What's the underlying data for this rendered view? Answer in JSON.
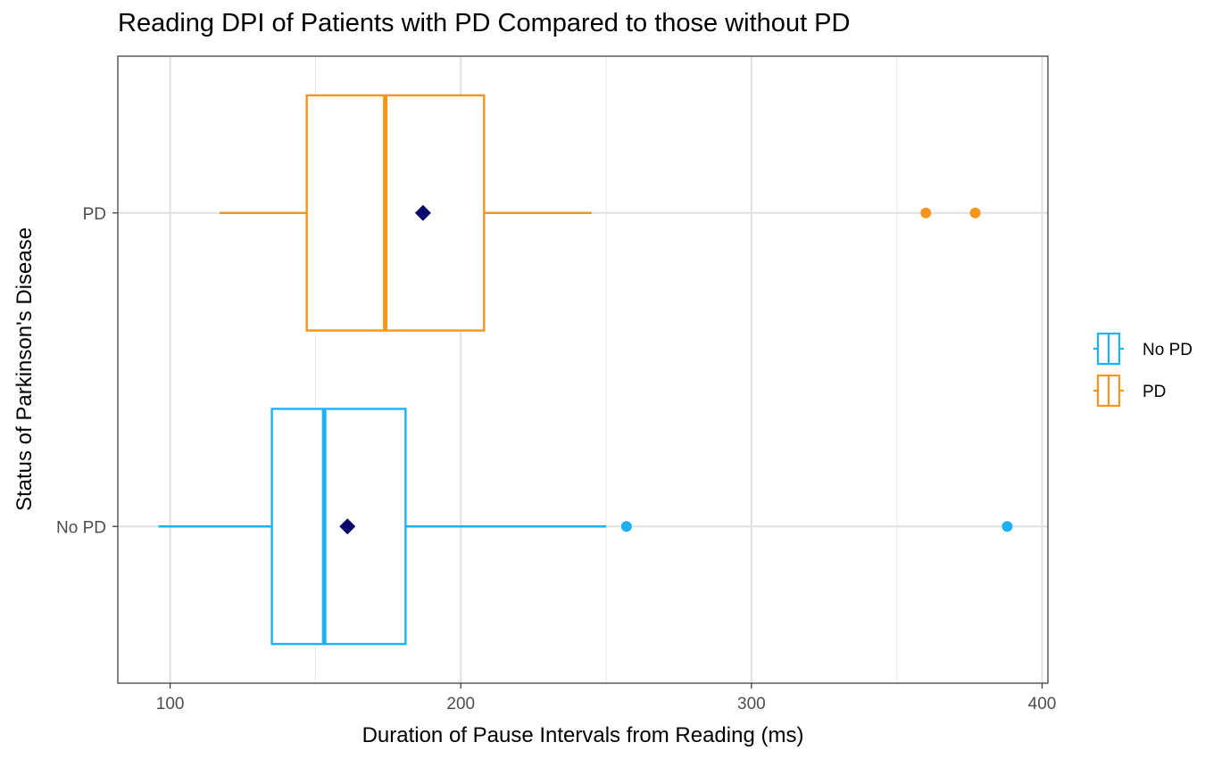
{
  "chart_data": {
    "type": "boxplot",
    "orientation": "horizontal",
    "title": "Reading DPI of Patients with PD Compared to those without PD",
    "xlabel": "Duration of Pause Intervals from Reading (ms)",
    "ylabel": "Status of Parkinson's Disease",
    "xlim": [
      82,
      402
    ],
    "x_ticks": [
      100,
      200,
      300,
      400
    ],
    "categories": [
      "No PD",
      "PD"
    ],
    "grid": true,
    "legend_position": "right",
    "series": [
      {
        "name": "No PD",
        "color": "#1ab2f5",
        "whisker_low": 96,
        "q1": 135,
        "median": 153,
        "q3": 181,
        "whisker_high": 250,
        "mean": 161,
        "outliers": [
          257,
          388
        ]
      },
      {
        "name": "PD",
        "color": "#f7941d",
        "whisker_low": 117,
        "q1": 147,
        "median": 174,
        "q3": 208,
        "whisker_high": 245,
        "mean": 187,
        "outliers": [
          360,
          377
        ]
      }
    ],
    "mean_marker_color": "#0a0a6e"
  }
}
